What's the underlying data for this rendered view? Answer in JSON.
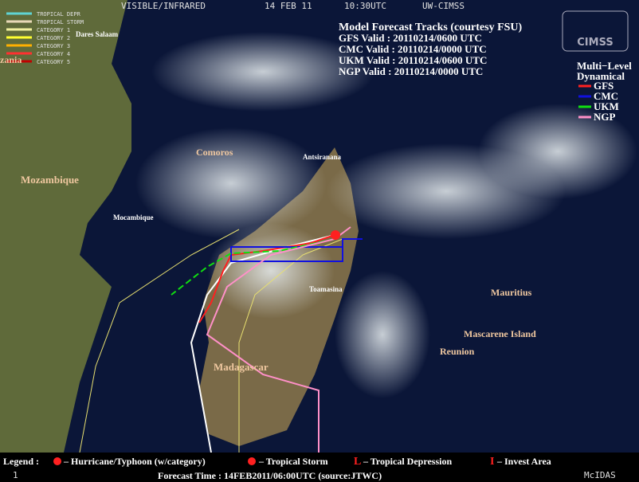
{
  "header": {
    "product": "VISIBLE/INFRARED",
    "date": "14 FEB 11",
    "time": "10:30UTC",
    "source": "UW-CIMSS"
  },
  "intensity_legend": [
    {
      "label": "TROPICAL DEPR",
      "color": "#5fd3d3"
    },
    {
      "label": "TROPICAL STORM",
      "color": "#e8d8b8"
    },
    {
      "label": "CATEGORY 1",
      "color": "#f0f0a0"
    },
    {
      "label": "CATEGORY 2",
      "color": "#ffff30"
    },
    {
      "label": "CATEGORY 3",
      "color": "#ffb000"
    },
    {
      "label": "CATEGORY 4",
      "color": "#ff3030"
    },
    {
      "label": "CATEGORY 5",
      "color": "#c00000"
    }
  ],
  "models": {
    "title": "Model Forecast Tracks (courtesy FSU)",
    "valid": [
      "GFS Valid : 20110214/0600 UTC",
      "CMC Valid : 20110214/0000 UTC",
      "UKM Valid : 20110214/0600 UTC",
      "NGP Valid : 20110214/0000 UTC"
    ],
    "group": [
      "Multi−Level",
      "Dynamical"
    ],
    "entries": [
      {
        "name": "GFS",
        "color": "#ff2020"
      },
      {
        "name": "CMC",
        "color": "#1010e0"
      },
      {
        "name": "UKM",
        "color": "#10e010"
      },
      {
        "name": "NGP",
        "color": "#ff90c8"
      }
    ]
  },
  "logo": "CIMSS",
  "places": [
    "Dares Salaam",
    "zania",
    "Comoros",
    "Antsiranana",
    "Mozambique",
    "Mocambique",
    "Toamasina",
    "Madagascar",
    "Mauritius",
    "Mascarene Island",
    "Reunion"
  ],
  "footer": {
    "legend_title": "Legend :",
    "items": [
      "– Hurricane/Typhoon (w/category)",
      "– Tropical Storm",
      "L",
      "– Tropical Depression",
      "I",
      "– Invest Area"
    ],
    "frame": "1",
    "software": "McIDAS",
    "forecast_time": "Forecast Time : 14FEB2011/06:00UTC (source:JTWC)"
  }
}
